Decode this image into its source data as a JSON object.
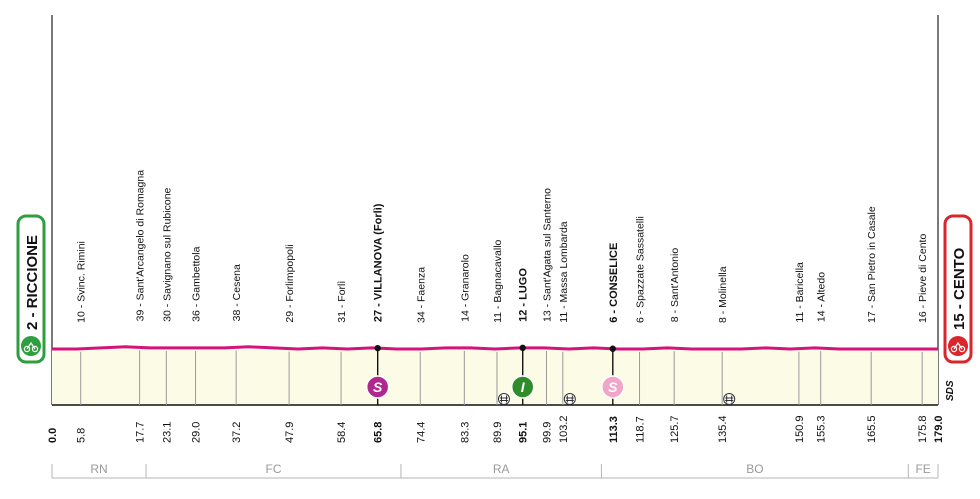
{
  "chart_data": {
    "type": "area",
    "title": "",
    "xlabel": "",
    "ylabel": "",
    "x_range_km": [
      0.0,
      179.0
    ],
    "start": {
      "label": "2 - RICCIONE",
      "color": "#2e9e3e"
    },
    "finish": {
      "label": "15 - CENTO",
      "color": "#d9262c"
    },
    "profile_color": "#d4147c",
    "fill_color": "#fbfbe6",
    "profile_level": [
      0.5,
      0.5,
      0.51,
      0.52,
      0.51,
      0.51,
      0.51,
      0.51,
      0.52,
      0.51,
      0.5,
      0.51,
      0.5,
      0.51,
      0.5,
      0.5,
      0.51,
      0.51,
      0.5,
      0.51,
      0.51,
      0.5,
      0.51,
      0.5,
      0.5,
      0.51,
      0.5,
      0.5,
      0.5,
      0.51,
      0.5,
      0.51,
      0.5,
      0.5,
      0.5,
      0.5,
      0.5
    ],
    "waypoints": [
      {
        "km": 5.8,
        "label": "10 - Svinc. Rimini",
        "bold": false
      },
      {
        "km": 17.7,
        "label": "39 - Sant'Arcangelo di Romagna",
        "bold": false
      },
      {
        "km": 23.1,
        "label": "30 - Savignano sul Rubicone",
        "bold": false
      },
      {
        "km": 29.0,
        "label": "36 - Gambettola",
        "bold": false
      },
      {
        "km": 37.2,
        "label": "38 - Cesena",
        "bold": false
      },
      {
        "km": 47.9,
        "label": "29 - Forlimpopoli",
        "bold": false
      },
      {
        "km": 58.4,
        "label": "31 - Forlì",
        "bold": false
      },
      {
        "km": 65.8,
        "label": "27 - VILLANOVA (Forlì)",
        "bold": true,
        "marker": "S",
        "marker_color": "#b0288f"
      },
      {
        "km": 74.4,
        "label": "34 - Faenza",
        "bold": false
      },
      {
        "km": 83.3,
        "label": "14 - Granarolo",
        "bold": false
      },
      {
        "km": 89.9,
        "label": "11 - Bagnacavallo",
        "bold": false
      },
      {
        "km": 95.1,
        "label": "12 - LUGO",
        "bold": true,
        "marker": "I",
        "marker_color": "#2e8c2a"
      },
      {
        "km": 99.9,
        "label": "13 - Sant'Agata sul Santerno",
        "bold": false
      },
      {
        "km": 103.2,
        "label": "11 - Massa Lombarda",
        "bold": false
      },
      {
        "km": 113.3,
        "label": "6 - CONSELICE",
        "bold": true,
        "marker": "S",
        "marker_color": "#f0a6c8"
      },
      {
        "km": 118.7,
        "label": "6 - Spazzate Sassatelli",
        "bold": false
      },
      {
        "km": 125.7,
        "label": "8 - Sant'Antonio",
        "bold": false
      },
      {
        "km": 135.4,
        "label": "8 - Molinella",
        "bold": false
      },
      {
        "km": 150.9,
        "label": "11 - Baricella",
        "bold": false
      },
      {
        "km": 155.3,
        "label": "14 - Altedo",
        "bold": false
      },
      {
        "km": 165.5,
        "label": "17 - San Pietro in Casale",
        "bold": false
      },
      {
        "km": 175.8,
        "label": "16 - Pieve di Cento",
        "bold": false
      }
    ],
    "distance_ticks": [
      {
        "km": 0.0,
        "label": "0.0",
        "bold": true
      },
      {
        "km": 5.8,
        "label": "5.8",
        "bold": false
      },
      {
        "km": 17.7,
        "label": "17.7",
        "bold": false
      },
      {
        "km": 23.1,
        "label": "23.1",
        "bold": false
      },
      {
        "km": 29.0,
        "label": "29.0",
        "bold": false
      },
      {
        "km": 37.2,
        "label": "37.2",
        "bold": false
      },
      {
        "km": 47.9,
        "label": "47.9",
        "bold": false
      },
      {
        "km": 58.4,
        "label": "58.4",
        "bold": false
      },
      {
        "km": 65.8,
        "label": "65.8",
        "bold": true
      },
      {
        "km": 74.4,
        "label": "74.4",
        "bold": false
      },
      {
        "km": 83.3,
        "label": "83.3",
        "bold": false
      },
      {
        "km": 89.9,
        "label": "89.9",
        "bold": false
      },
      {
        "km": 95.1,
        "label": "95.1",
        "bold": true
      },
      {
        "km": 99.9,
        "label": "99.9",
        "bold": false
      },
      {
        "km": 103.2,
        "label": "103.2",
        "bold": false
      },
      {
        "km": 113.3,
        "label": "113.3",
        "bold": true
      },
      {
        "km": 118.7,
        "label": "118.7",
        "bold": false
      },
      {
        "km": 125.7,
        "label": "125.7",
        "bold": false
      },
      {
        "km": 135.4,
        "label": "135.4",
        "bold": false
      },
      {
        "km": 150.9,
        "label": "150.9",
        "bold": false
      },
      {
        "km": 155.3,
        "label": "155.3",
        "bold": false
      },
      {
        "km": 165.5,
        "label": "165.5",
        "bold": false
      },
      {
        "km": 175.8,
        "label": "175.8",
        "bold": false
      },
      {
        "km": 179.0,
        "label": "179.0",
        "bold": true
      }
    ],
    "crossings_km": [
      89.9,
      103.2,
      135.4
    ],
    "provinces": [
      {
        "code": "RN",
        "from_km": 0.0,
        "to_km": 19.0
      },
      {
        "code": "FC",
        "from_km": 19.0,
        "to_km": 70.5
      },
      {
        "code": "RA",
        "from_km": 70.5,
        "to_km": 111.0
      },
      {
        "code": "BO",
        "from_km": 111.0,
        "to_km": 173.0
      },
      {
        "code": "FE",
        "from_km": 173.0,
        "to_km": 179.0
      }
    ],
    "logo_text": "SDS",
    "grid": false,
    "legend": "none"
  }
}
